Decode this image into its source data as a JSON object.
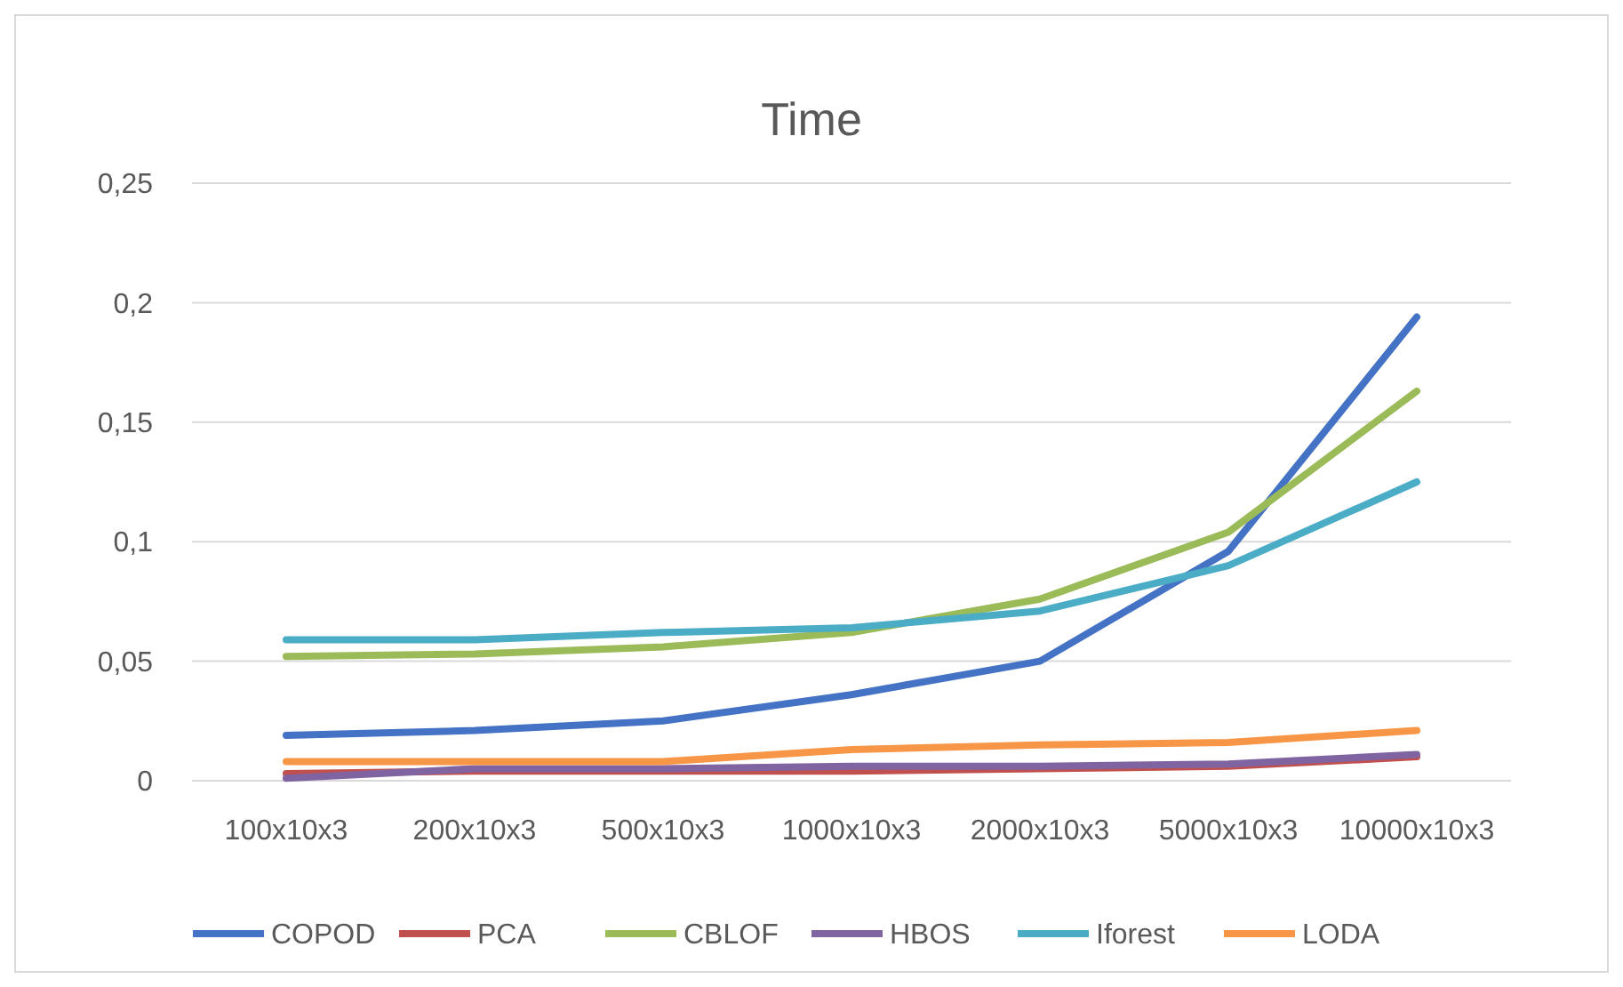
{
  "chart_data": {
    "type": "line",
    "title": "Time",
    "categories": [
      "100x10x3",
      "200x10x3",
      "500x10x3",
      "1000x10x3",
      "2000x10x3",
      "5000x10x3",
      "10000x10x3"
    ],
    "series": [
      {
        "name": "COPOD",
        "color": "#4472c4",
        "values": [
          0.019,
          0.021,
          0.025,
          0.036,
          0.05,
          0.096,
          0.194
        ]
      },
      {
        "name": "PCA",
        "color": "#c0504d",
        "values": [
          0.003,
          0.004,
          0.004,
          0.004,
          0.005,
          0.006,
          0.01
        ]
      },
      {
        "name": "CBLOF",
        "color": "#9bbb59",
        "values": [
          0.052,
          0.053,
          0.056,
          0.062,
          0.076,
          0.104,
          0.163
        ]
      },
      {
        "name": "HBOS",
        "color": "#8064a2",
        "values": [
          0.001,
          0.005,
          0.005,
          0.006,
          0.006,
          0.007,
          0.011
        ]
      },
      {
        "name": "Iforest",
        "color": "#4bacc6",
        "values": [
          0.059,
          0.059,
          0.062,
          0.064,
          0.071,
          0.09,
          0.125
        ]
      },
      {
        "name": "LODA",
        "color": "#f79646",
        "values": [
          0.008,
          0.008,
          0.008,
          0.013,
          0.015,
          0.016,
          0.021
        ]
      }
    ],
    "ylim": [
      0,
      0.25
    ],
    "yticks": [
      0,
      {
        "value": 0.05,
        "label": "0,05"
      },
      {
        "value": 0.1,
        "label": "0,1"
      },
      {
        "value": 0.15,
        "label": "0,15"
      },
      {
        "value": 0.2,
        "label": "0,2"
      },
      {
        "value": 0.25,
        "label": "0,25"
      }
    ],
    "grid": "y",
    "legend": "bottom",
    "marker": "none",
    "line_style": "solid"
  }
}
